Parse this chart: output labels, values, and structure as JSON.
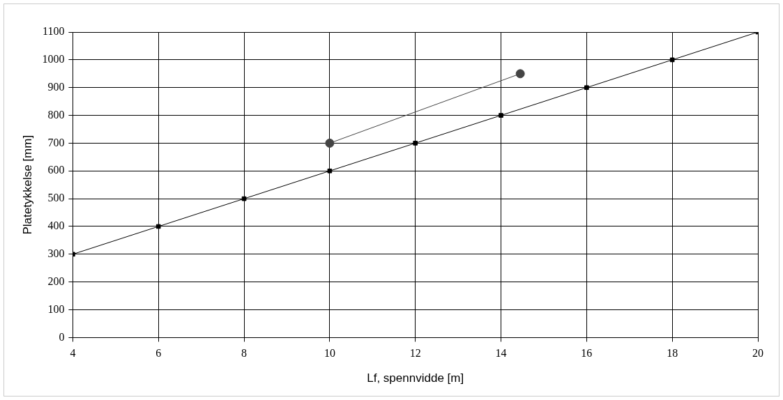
{
  "chart_data": {
    "type": "line",
    "xlabel": "Lf, spennvidde [m]",
    "ylabel": "Platetykkelse [mm]",
    "series": [
      {
        "color": "#000000",
        "marker": "square",
        "x": [
          4,
          6,
          8,
          10,
          12,
          14,
          16,
          18,
          20
        ],
        "values": [
          300,
          400,
          500,
          600,
          700,
          800,
          900,
          1000,
          1100
        ]
      },
      {
        "color": "#444444",
        "marker": "circle",
        "x": [
          10,
          14.45
        ],
        "values": [
          700,
          950
        ]
      }
    ],
    "xlim": [
      4,
      20
    ],
    "xticks": [
      4,
      6,
      8,
      10,
      12,
      14,
      16,
      18,
      20
    ],
    "ylim": [
      0,
      1100
    ],
    "yticks": [
      0,
      100,
      200,
      300,
      400,
      500,
      600,
      700,
      800,
      900,
      1000,
      1100
    ],
    "grid": true,
    "legend": false
  }
}
